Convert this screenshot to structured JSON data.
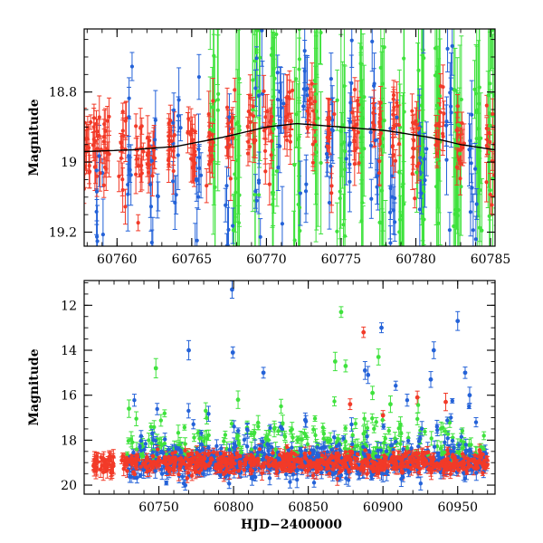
{
  "chart_data": [
    {
      "type": "scatter",
      "panel": "top",
      "xlabel": "",
      "ylabel": "Magnitude",
      "xlim": [
        60757.8,
        60785.3
      ],
      "ylim": [
        19.24,
        18.62
      ],
      "y_inverted": true,
      "xticks": [
        60760,
        60765,
        60770,
        60775,
        60780,
        60785
      ],
      "yticks": [
        18.8,
        19,
        19.2
      ],
      "xtick_labels": [
        "60760",
        "60765",
        "60770",
        "60775",
        "60780",
        "60785"
      ],
      "ytick_labels": [
        "18.8",
        "19",
        "19.2"
      ],
      "series": [
        {
          "color": "#f23a28",
          "marker": "circle-with-errorbars",
          "approx_points": [
            [
              60758.0,
              18.95
            ],
            [
              60758.6,
              19.02
            ],
            [
              60759.2,
              18.96
            ],
            [
              60760.4,
              18.93
            ],
            [
              60761.5,
              18.9
            ],
            [
              60762.3,
              18.95
            ],
            [
              60763.6,
              18.94
            ],
            [
              60765.0,
              18.92
            ],
            [
              60766.2,
              18.9
            ],
            [
              60767.6,
              18.9
            ],
            [
              60769.0,
              18.88
            ],
            [
              60770.1,
              18.87
            ],
            [
              60771.5,
              18.89
            ],
            [
              60773.0,
              18.88
            ],
            [
              60774.3,
              18.9
            ],
            [
              60776.0,
              18.9
            ],
            [
              60777.4,
              18.93
            ],
            [
              60778.7,
              18.92
            ],
            [
              60780.0,
              18.95
            ],
            [
              60781.6,
              18.94
            ],
            [
              60783.0,
              18.96
            ],
            [
              60785.0,
              18.97
            ]
          ]
        },
        {
          "color": "#2462d8",
          "marker": "circle-with-errorbars",
          "approx_points": [
            [
              60758.8,
              19.1
            ],
            [
              60760.8,
              18.98
            ],
            [
              60762.5,
              19.02
            ],
            [
              60764.0,
              19.05
            ],
            [
              60765.5,
              19.08
            ],
            [
              60767.5,
              19.15
            ],
            [
              60769.5,
              18.92
            ],
            [
              60771.0,
              18.87
            ],
            [
              60772.5,
              18.8
            ],
            [
              60774.2,
              18.95
            ],
            [
              60775.5,
              19.0
            ],
            [
              60777.2,
              18.88
            ],
            [
              60778.5,
              19.05
            ],
            [
              60780.5,
              18.98
            ],
            [
              60782.2,
              18.93
            ],
            [
              60783.8,
              19.1
            ]
          ]
        },
        {
          "color": "#3fe23d",
          "marker": "circle-with-errorbars",
          "approx_points": [
            [
              60766.5,
              18.95
            ],
            [
              60768.0,
              19.05
            ],
            [
              60769.3,
              18.85
            ],
            [
              60770.6,
              18.92
            ],
            [
              60772.0,
              18.98
            ],
            [
              60773.4,
              18.9
            ],
            [
              60775.0,
              19.02
            ],
            [
              60776.3,
              18.88
            ],
            [
              60777.7,
              18.95
            ],
            [
              60779.0,
              19.05
            ],
            [
              60780.3,
              18.9
            ],
            [
              60781.5,
              18.97
            ],
            [
              60782.8,
              19.02
            ],
            [
              60784.2,
              18.95
            ],
            [
              60785.1,
              18.92
            ]
          ]
        }
      ],
      "model_curve": {
        "color": "#000000",
        "points": [
          [
            60757.8,
            18.97
          ],
          [
            60761,
            18.965
          ],
          [
            60764,
            18.955
          ],
          [
            60767,
            18.93
          ],
          [
            60770,
            18.9
          ],
          [
            60772,
            18.89
          ],
          [
            60775,
            18.9
          ],
          [
            60778,
            18.91
          ],
          [
            60781,
            18.93
          ],
          [
            60783,
            18.95
          ],
          [
            60785.3,
            18.965
          ]
        ]
      }
    },
    {
      "type": "scatter",
      "panel": "bottom",
      "xlabel": "HJD−2400000",
      "ylabel": "Magnitude",
      "xlim": [
        60700,
        60975
      ],
      "ylim": [
        20.4,
        10.9
      ],
      "y_inverted": true,
      "xticks": [
        60750,
        60800,
        60850,
        60900,
        60950
      ],
      "yticks": [
        12,
        14,
        16,
        18,
        20
      ],
      "xtick_labels": [
        "60750",
        "60800",
        "60850",
        "60900",
        "60950"
      ],
      "ytick_labels": [
        "12",
        "14",
        "16",
        "18",
        "20"
      ],
      "baseline": {
        "x_range": [
          60706,
          60970
        ],
        "y_center": 19.0
      },
      "series": [
        {
          "color": "#2462d8",
          "marker": "circle-with-errorbars",
          "outliers": [
            [
              60770,
              14.0
            ],
            [
              60799,
              11.3
            ],
            [
              60799.5,
              14.1
            ],
            [
              60820,
              15.0
            ],
            [
              60848,
              17.1
            ],
            [
              60888,
              14.9
            ],
            [
              60890,
              15.1
            ],
            [
              60899,
              13.0
            ],
            [
              60932,
              15.3
            ],
            [
              60934,
              14.0
            ],
            [
              60950,
              12.7
            ],
            [
              60955,
              15.0
            ],
            [
              60958,
              16.0
            ]
          ]
        },
        {
          "color": "#3fe23d",
          "marker": "circle-with-errorbars",
          "outliers": [
            [
              60748,
              14.8
            ],
            [
              60730,
              16.6
            ],
            [
              60803,
              16.2
            ],
            [
              60868,
              14.5
            ],
            [
              60872,
              12.3
            ],
            [
              60875,
              14.7
            ],
            [
              60897,
              14.3
            ],
            [
              60893,
              15.9
            ],
            [
              60905,
              16.4
            ]
          ]
        },
        {
          "color": "#f23a28",
          "marker": "circle-with-errorbars",
          "outliers": [
            [
              60887,
              13.2
            ],
            [
              60878,
              16.4
            ],
            [
              60900,
              16.9
            ],
            [
              60923,
              16.1
            ],
            [
              60942,
              16.3
            ],
            [
              60715,
              19.1
            ],
            [
              60711,
              19.3
            ]
          ]
        }
      ]
    }
  ]
}
